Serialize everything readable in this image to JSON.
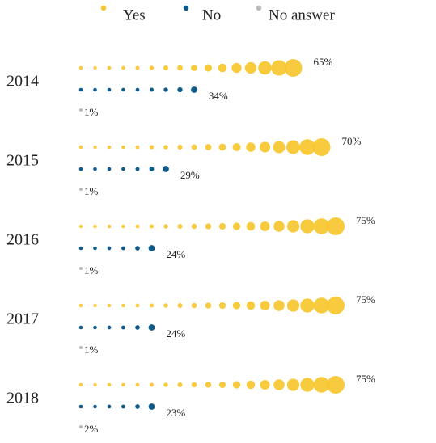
{
  "chart_data": {
    "type": "dot-bar",
    "categories": [
      "2014",
      "2015",
      "2016",
      "2017",
      "2018"
    ],
    "series": [
      {
        "name": "Yes",
        "color": "#f7c52a",
        "values": [
          65,
          70,
          75,
          75,
          75
        ],
        "value_labels": [
          "65%",
          "70%",
          "75%",
          "75%",
          "75%"
        ]
      },
      {
        "name": "No",
        "color": "#105a8a",
        "values": [
          34,
          29,
          24,
          24,
          23
        ],
        "value_labels": [
          "34%",
          "29%",
          "24%",
          "24%",
          "23%"
        ]
      },
      {
        "name": "No answer",
        "color": "#b9b9b9",
        "values": [
          1,
          1,
          1,
          1,
          2
        ],
        "value_labels": [
          "1%",
          "1%",
          "1%",
          "1%",
          "2%"
        ]
      }
    ]
  }
}
